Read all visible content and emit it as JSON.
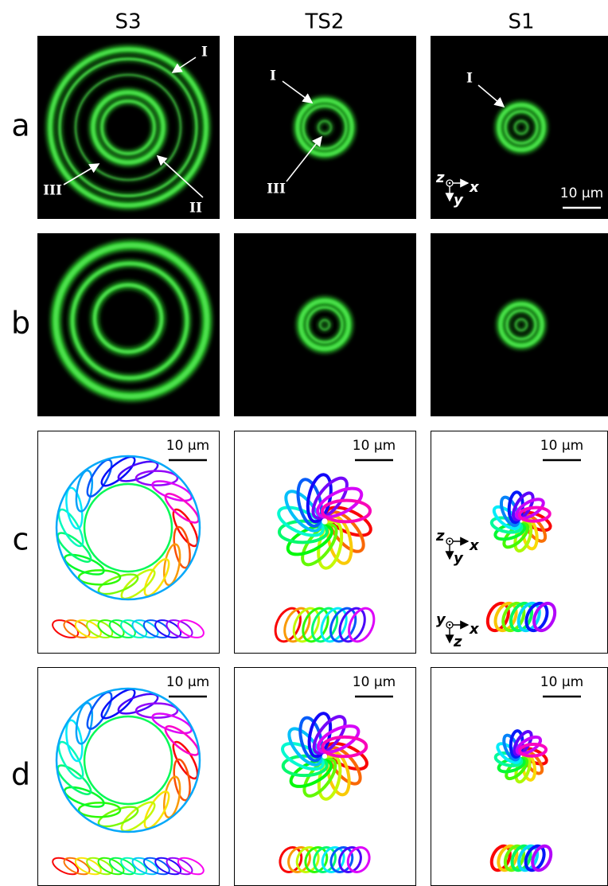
{
  "columns": [
    "S3",
    "TS2",
    "S1"
  ],
  "rows": [
    "a",
    "b",
    "c",
    "d"
  ],
  "markers": [
    "I",
    "II",
    "III"
  ],
  "scale_bar": "10 µm",
  "axes": {
    "x": "x",
    "y": "y",
    "z": "z"
  }
}
